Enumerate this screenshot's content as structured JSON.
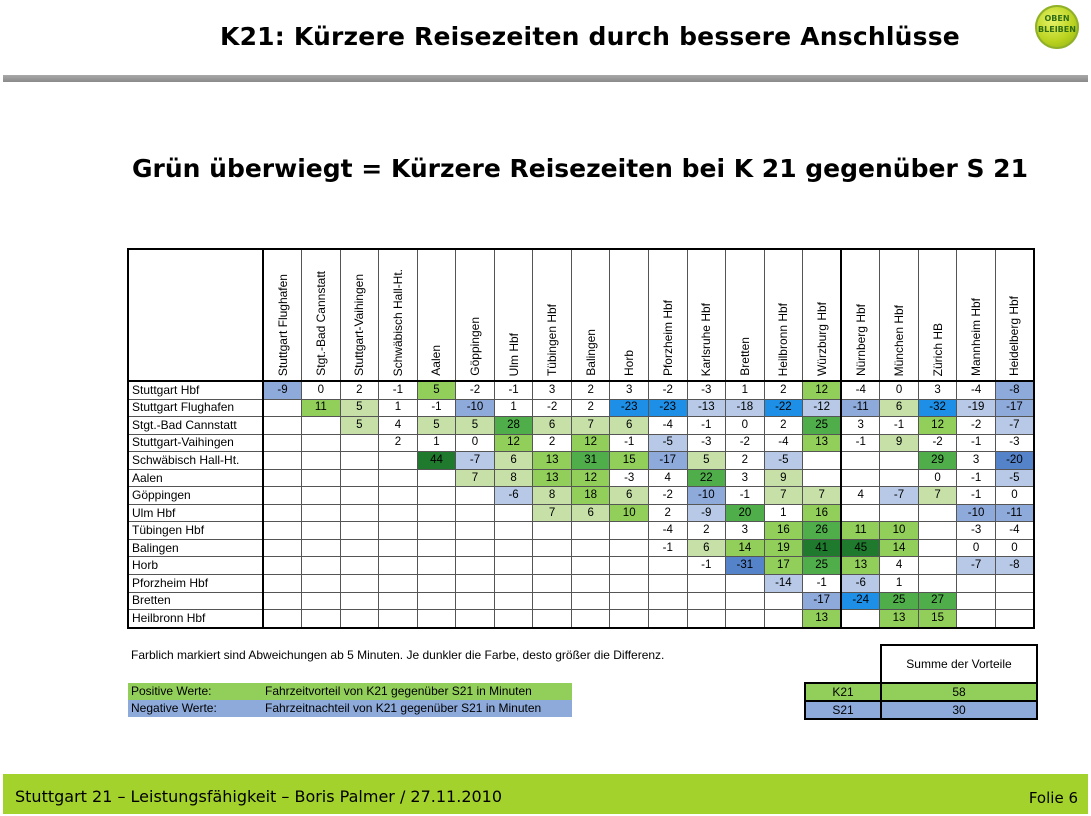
{
  "header": {
    "title": "K21:  Kürzere Reisezeiten durch bessere Anschlüsse",
    "logo_line1": "OBEN",
    "logo_line2": "BLEIBEN"
  },
  "subtitle": "Grün überwiegt = Kürzere Reisezeiten bei K 21 gegenüber S 21",
  "table": {
    "columns": [
      "Stuttgart Flughafen",
      "Stgt.-Bad Cannstatt",
      "Stuttgart-Vaihingen",
      "Schwäbisch Hall-Ht.",
      "Aalen",
      "Göppingen",
      "Ulm Hbf",
      "Tübingen Hbf",
      "Balingen",
      "Horb",
      "Pforzheim Hbf",
      "Karlsruhe Hbf",
      "Bretten",
      "Heilbronn Hbf",
      "Würzburg Hbf",
      "Nürnberg Hbf",
      "München Hbf",
      "Zürich HB",
      "Mannheim Hbf",
      "Heidelberg Hbf"
    ],
    "rows": [
      {
        "label": "Stuttgart Hbf",
        "cells": [
          [
            "-9",
            "b2"
          ],
          [
            "0",
            ""
          ],
          [
            "2",
            ""
          ],
          [
            "-1",
            ""
          ],
          [
            "5",
            "g2"
          ],
          [
            "-2",
            ""
          ],
          [
            "-1",
            ""
          ],
          [
            "3",
            ""
          ],
          [
            "2",
            ""
          ],
          [
            "3",
            ""
          ],
          [
            "-2",
            ""
          ],
          [
            "-3",
            ""
          ],
          [
            "1",
            ""
          ],
          [
            "2",
            ""
          ],
          [
            "12",
            "g2"
          ],
          [
            "-4",
            ""
          ],
          [
            "0",
            ""
          ],
          [
            "3",
            ""
          ],
          [
            "-4",
            ""
          ],
          [
            "-8",
            "b2"
          ]
        ]
      },
      {
        "label": "Stuttgart Flughafen",
        "cells": [
          [
            "",
            ""
          ],
          [
            "11",
            "g2"
          ],
          [
            "5",
            "g1"
          ],
          [
            "1",
            ""
          ],
          [
            "-1",
            ""
          ],
          [
            "-10",
            "b2"
          ],
          [
            "1",
            ""
          ],
          [
            "-2",
            ""
          ],
          [
            "2",
            ""
          ],
          [
            "-23",
            "b4"
          ],
          [
            "-23",
            "b4"
          ],
          [
            "-13",
            "b1"
          ],
          [
            "-18",
            "b1"
          ],
          [
            "-22",
            "b4"
          ],
          [
            "-12",
            "b1"
          ],
          [
            "-11",
            "b2"
          ],
          [
            "6",
            "g1"
          ],
          [
            "-32",
            "b4"
          ],
          [
            "-19",
            "b1"
          ],
          [
            "-17",
            "b2"
          ]
        ]
      },
      {
        "label": "Stgt.-Bad Cannstatt",
        "cells": [
          [
            "",
            ""
          ],
          [
            "",
            ""
          ],
          [
            "5",
            "g1"
          ],
          [
            "4",
            ""
          ],
          [
            "5",
            "g1"
          ],
          [
            "5",
            "g1"
          ],
          [
            "28",
            "g3"
          ],
          [
            "6",
            "g1"
          ],
          [
            "7",
            "g1"
          ],
          [
            "6",
            "g1"
          ],
          [
            "-4",
            ""
          ],
          [
            "-1",
            ""
          ],
          [
            "0",
            ""
          ],
          [
            "2",
            ""
          ],
          [
            "25",
            "g3"
          ],
          [
            "3",
            ""
          ],
          [
            "-1",
            ""
          ],
          [
            "12",
            "g2"
          ],
          [
            "-2",
            ""
          ],
          [
            "-7",
            "b1"
          ]
        ]
      },
      {
        "label": "Stuttgart-Vaihingen",
        "cells": [
          [
            "",
            ""
          ],
          [
            "",
            ""
          ],
          [
            "",
            ""
          ],
          [
            "2",
            ""
          ],
          [
            "1",
            ""
          ],
          [
            "0",
            ""
          ],
          [
            "12",
            "g2"
          ],
          [
            "2",
            ""
          ],
          [
            "12",
            "g2"
          ],
          [
            "-1",
            ""
          ],
          [
            "-5",
            "b1"
          ],
          [
            "-3",
            ""
          ],
          [
            "-2",
            ""
          ],
          [
            "-4",
            ""
          ],
          [
            "13",
            "g2"
          ],
          [
            "-1",
            ""
          ],
          [
            "9",
            "g1"
          ],
          [
            "-2",
            ""
          ],
          [
            "-1",
            ""
          ],
          [
            "-3",
            ""
          ]
        ]
      },
      {
        "label": "Schwäbisch Hall-Ht.",
        "cells": [
          [
            "",
            ""
          ],
          [
            "",
            ""
          ],
          [
            "",
            ""
          ],
          [
            "",
            ""
          ],
          [
            "44",
            "g4"
          ],
          [
            "-7",
            "b1"
          ],
          [
            "6",
            "g1"
          ],
          [
            "13",
            "g2"
          ],
          [
            "31",
            "g3"
          ],
          [
            "15",
            "g2"
          ],
          [
            "-17",
            "b2"
          ],
          [
            "5",
            "g1"
          ],
          [
            "2",
            ""
          ],
          [
            "-5",
            "b1"
          ],
          [
            "",
            ""
          ],
          [
            "",
            ""
          ],
          [
            "",
            ""
          ],
          [
            "29",
            "g3"
          ],
          [
            "3",
            ""
          ],
          [
            "-20",
            "b3"
          ]
        ]
      },
      {
        "label": "Aalen",
        "cells": [
          [
            "",
            ""
          ],
          [
            "",
            ""
          ],
          [
            "",
            ""
          ],
          [
            "",
            ""
          ],
          [
            "",
            ""
          ],
          [
            "7",
            "g1"
          ],
          [
            "8",
            "g1"
          ],
          [
            "13",
            "g2"
          ],
          [
            "12",
            "g2"
          ],
          [
            "-3",
            ""
          ],
          [
            "4",
            ""
          ],
          [
            "22",
            "g3"
          ],
          [
            "3",
            ""
          ],
          [
            "9",
            "g1"
          ],
          [
            "",
            ""
          ],
          [
            "",
            ""
          ],
          [
            "",
            ""
          ],
          [
            "0",
            ""
          ],
          [
            "-1",
            ""
          ],
          [
            "-5",
            "b1"
          ]
        ]
      },
      {
        "label": "Göppingen",
        "cells": [
          [
            "",
            ""
          ],
          [
            "",
            ""
          ],
          [
            "",
            ""
          ],
          [
            "",
            ""
          ],
          [
            "",
            ""
          ],
          [
            "",
            ""
          ],
          [
            "-6",
            "b1"
          ],
          [
            "8",
            "g1"
          ],
          [
            "18",
            "g2"
          ],
          [
            "6",
            "g1"
          ],
          [
            "-2",
            ""
          ],
          [
            "-10",
            "b2"
          ],
          [
            "-1",
            ""
          ],
          [
            "7",
            "g1"
          ],
          [
            "7",
            "g1"
          ],
          [
            "4",
            ""
          ],
          [
            "-7",
            "b1"
          ],
          [
            "7",
            "g1"
          ],
          [
            "-1",
            ""
          ],
          [
            "0",
            ""
          ]
        ]
      },
      {
        "label": "Ulm Hbf",
        "cells": [
          [
            "",
            ""
          ],
          [
            "",
            ""
          ],
          [
            "",
            ""
          ],
          [
            "",
            ""
          ],
          [
            "",
            ""
          ],
          [
            "",
            ""
          ],
          [
            "",
            ""
          ],
          [
            "7",
            "g1"
          ],
          [
            "6",
            "g1"
          ],
          [
            "10",
            "g2"
          ],
          [
            "2",
            ""
          ],
          [
            "-9",
            "b1"
          ],
          [
            "20",
            "g3"
          ],
          [
            "1",
            ""
          ],
          [
            "16",
            "g2"
          ],
          [
            "",
            ""
          ],
          [
            "",
            ""
          ],
          [
            "",
            ""
          ],
          [
            "-10",
            "b2"
          ],
          [
            "-11",
            "b2"
          ]
        ]
      },
      {
        "label": "Tübingen Hbf",
        "cells": [
          [
            "",
            ""
          ],
          [
            "",
            ""
          ],
          [
            "",
            ""
          ],
          [
            "",
            ""
          ],
          [
            "",
            ""
          ],
          [
            "",
            ""
          ],
          [
            "",
            ""
          ],
          [
            "",
            ""
          ],
          [
            "",
            ""
          ],
          [
            "",
            ""
          ],
          [
            "-4",
            ""
          ],
          [
            "2",
            ""
          ],
          [
            "3",
            ""
          ],
          [
            "16",
            "g2"
          ],
          [
            "26",
            "g3"
          ],
          [
            "11",
            "g2"
          ],
          [
            "10",
            "g2"
          ],
          [
            "",
            ""
          ],
          [
            "-3",
            ""
          ],
          [
            "-4",
            ""
          ]
        ]
      },
      {
        "label": "Balingen",
        "cells": [
          [
            "",
            ""
          ],
          [
            "",
            ""
          ],
          [
            "",
            ""
          ],
          [
            "",
            ""
          ],
          [
            "",
            ""
          ],
          [
            "",
            ""
          ],
          [
            "",
            ""
          ],
          [
            "",
            ""
          ],
          [
            "",
            ""
          ],
          [
            "",
            ""
          ],
          [
            "-1",
            ""
          ],
          [
            "6",
            "g1"
          ],
          [
            "14",
            "g2"
          ],
          [
            "19",
            "g2"
          ],
          [
            "41",
            "g4"
          ],
          [
            "45",
            "g4"
          ],
          [
            "14",
            "g2"
          ],
          [
            "",
            ""
          ],
          [
            "0",
            ""
          ],
          [
            "0",
            ""
          ]
        ]
      },
      {
        "label": "Horb",
        "cells": [
          [
            "",
            ""
          ],
          [
            "",
            ""
          ],
          [
            "",
            ""
          ],
          [
            "",
            ""
          ],
          [
            "",
            ""
          ],
          [
            "",
            ""
          ],
          [
            "",
            ""
          ],
          [
            "",
            ""
          ],
          [
            "",
            ""
          ],
          [
            "",
            ""
          ],
          [
            "",
            ""
          ],
          [
            "-1",
            ""
          ],
          [
            "-31",
            "b3"
          ],
          [
            "17",
            "g2"
          ],
          [
            "25",
            "g3"
          ],
          [
            "13",
            "g2"
          ],
          [
            "4",
            ""
          ],
          [
            "",
            ""
          ],
          [
            "-7",
            "b1"
          ],
          [
            "-8",
            "b1"
          ]
        ]
      },
      {
        "label": "Pforzheim Hbf",
        "cells": [
          [
            "",
            ""
          ],
          [
            "",
            ""
          ],
          [
            "",
            ""
          ],
          [
            "",
            ""
          ],
          [
            "",
            ""
          ],
          [
            "",
            ""
          ],
          [
            "",
            ""
          ],
          [
            "",
            ""
          ],
          [
            "",
            ""
          ],
          [
            "",
            ""
          ],
          [
            "",
            ""
          ],
          [
            "",
            ""
          ],
          [
            "",
            ""
          ],
          [
            "-14",
            "b1"
          ],
          [
            "-1",
            ""
          ],
          [
            "-6",
            "b1"
          ],
          [
            "1",
            ""
          ],
          [
            "",
            ""
          ],
          [
            "",
            ""
          ],
          [
            "",
            ""
          ]
        ]
      },
      {
        "label": "Bretten",
        "cells": [
          [
            "",
            ""
          ],
          [
            "",
            ""
          ],
          [
            "",
            ""
          ],
          [
            "",
            ""
          ],
          [
            "",
            ""
          ],
          [
            "",
            ""
          ],
          [
            "",
            ""
          ],
          [
            "",
            ""
          ],
          [
            "",
            ""
          ],
          [
            "",
            ""
          ],
          [
            "",
            ""
          ],
          [
            "",
            ""
          ],
          [
            "",
            ""
          ],
          [
            "",
            ""
          ],
          [
            "-17",
            "b2"
          ],
          [
            "-24",
            "b4"
          ],
          [
            "25",
            "g3"
          ],
          [
            "27",
            "g3"
          ],
          [
            "",
            ""
          ],
          [
            "",
            ""
          ]
        ]
      },
      {
        "label": "Heilbronn Hbf",
        "cells": [
          [
            "",
            ""
          ],
          [
            "",
            ""
          ],
          [
            "",
            ""
          ],
          [
            "",
            ""
          ],
          [
            "",
            ""
          ],
          [
            "",
            ""
          ],
          [
            "",
            ""
          ],
          [
            "",
            ""
          ],
          [
            "",
            ""
          ],
          [
            "",
            ""
          ],
          [
            "",
            ""
          ],
          [
            "",
            ""
          ],
          [
            "",
            ""
          ],
          [
            "",
            ""
          ],
          [
            "13",
            "g2"
          ],
          [
            "",
            ""
          ],
          [
            "13",
            "g2"
          ],
          [
            "15",
            "g2"
          ],
          [
            "",
            ""
          ],
          [
            "",
            ""
          ]
        ]
      }
    ]
  },
  "note": "Farblich markiert sind Abweichungen ab 5 Minuten. Je dunkler die Farbe, desto größer die Differenz.",
  "legend": {
    "positive_key": "Positive Werte:",
    "positive_value": "Fahrzeitvorteil von K21 gegenüber S21 in Minuten",
    "negative_key": "Negative Werte:",
    "negative_value": "Fahrzeitnachteil von K21 gegenüber S21 in Minuten"
  },
  "summary": {
    "header": "Summe der Vorteile",
    "k21_label": "K21",
    "k21_value": "58",
    "s21_label": "S21",
    "s21_value": "30"
  },
  "footer": {
    "left": "Stuttgart 21 – Leistungsfähigkeit – Boris Palmer / 27.11.2010",
    "right": "Folie 6"
  },
  "colors": {
    "green_light": "#c6e0a8",
    "green": "#92cf5a",
    "green_mid": "#4fae4a",
    "green_dark": "#1f7a2e",
    "blue_light": "#b7c9e6",
    "blue": "#8eaadb",
    "blue_mid": "#5583c9",
    "blue_bright": "#1e8fe6",
    "footer_bar": "#a3d22c"
  }
}
